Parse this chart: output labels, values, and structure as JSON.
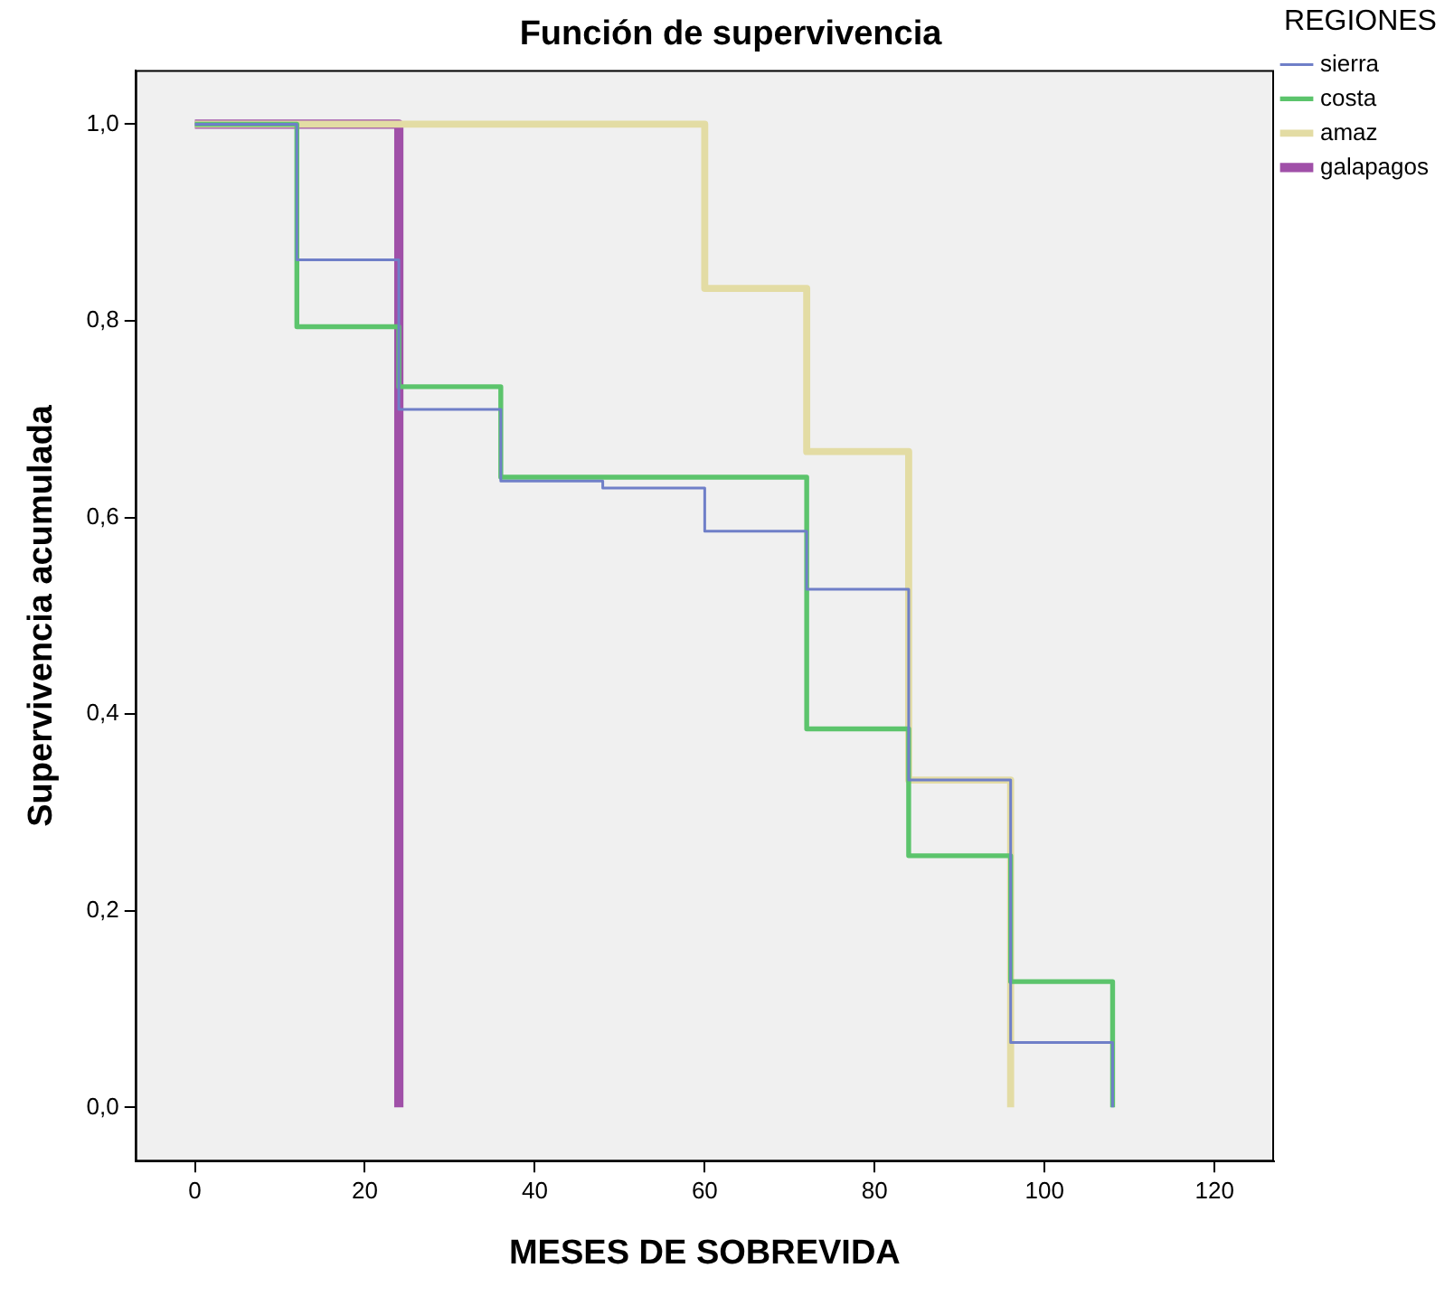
{
  "chart_data": {
    "type": "step",
    "title": "Función de supervivencia",
    "xlabel": "MESES DE SOBREVIDA",
    "ylabel": "Supervivencia acumulada",
    "legend_title": "REGIONES",
    "legend": "right",
    "grid": false,
    "marker": "none",
    "line_style": "solid",
    "xlim": [
      -7,
      127
    ],
    "xticks": [
      0,
      20,
      40,
      60,
      80,
      100,
      120
    ],
    "ylim": [
      -0.055,
      1.055
    ],
    "yticks": [
      {
        "value": 0,
        "label": "0,0"
      },
      {
        "value": 0.2,
        "label": "0,2"
      },
      {
        "value": 0.4,
        "label": "0,4"
      },
      {
        "value": 0.6,
        "label": "0,6"
      },
      {
        "value": 0.8,
        "label": "0,8"
      },
      {
        "value": 1,
        "label": "1,0"
      }
    ],
    "series": [
      {
        "name": "sierra",
        "color": "#6f7fc8",
        "x": [
          0,
          12,
          24,
          36,
          48,
          60,
          72,
          84,
          96,
          108
        ],
        "values": [
          1,
          0.862,
          0.71,
          0.637,
          0.63,
          0.586,
          0.527,
          0.333,
          0.066,
          0
        ]
      },
      {
        "name": "costa",
        "color": "#5cc46c",
        "x": [
          0,
          12,
          24,
          36,
          72,
          84,
          96,
          108
        ],
        "values": [
          1,
          0.794,
          0.733,
          0.641,
          0.385,
          0.256,
          0.128,
          0
        ]
      },
      {
        "name": "amaz",
        "color": "#e3dca4",
        "x": [
          0,
          60,
          72,
          84,
          96
        ],
        "values": [
          1,
          0.833,
          0.667,
          0.333,
          0
        ]
      },
      {
        "name": "galapagos",
        "color": "#a050a8",
        "x": [
          0,
          24
        ],
        "values": [
          1,
          0
        ]
      }
    ]
  }
}
